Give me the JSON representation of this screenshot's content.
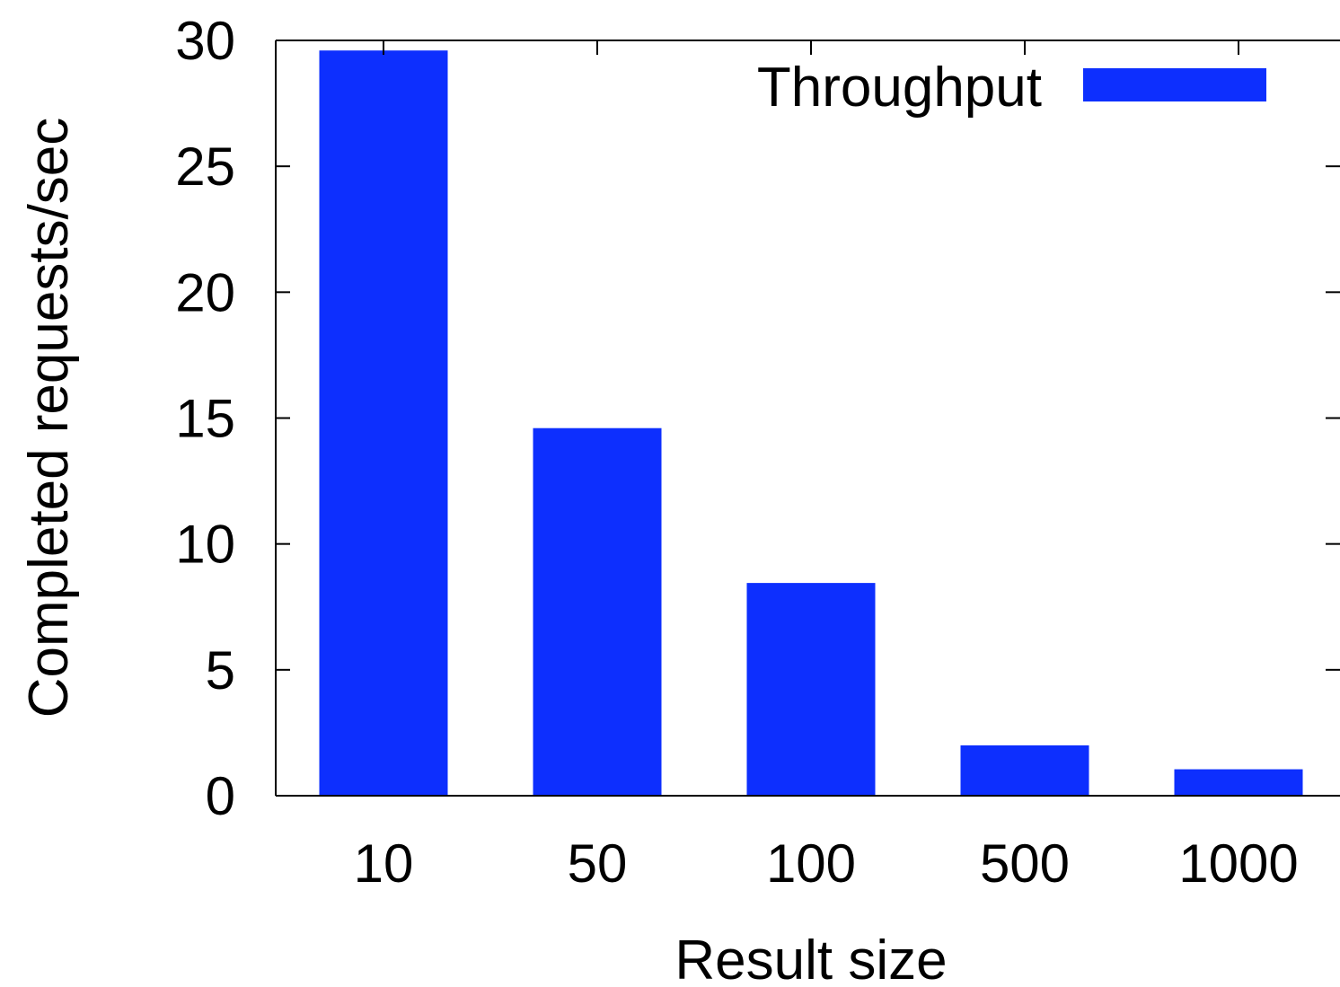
{
  "chart_data": {
    "type": "bar",
    "categories": [
      "10",
      "50",
      "100",
      "500",
      "1000"
    ],
    "series": [
      {
        "name": "Throughput",
        "values": [
          29.6,
          14.6,
          8.45,
          2.0,
          1.05
        ],
        "color": "#0d2ffe"
      }
    ],
    "xlabel": "Result size",
    "ylabel": "Completed requests/sec",
    "ylim": [
      0,
      30
    ],
    "yticks": [
      0,
      5,
      10,
      15,
      20,
      25,
      30
    ],
    "grid": false,
    "legend": {
      "position": "top-right",
      "entries": [
        "Throughput"
      ]
    }
  }
}
